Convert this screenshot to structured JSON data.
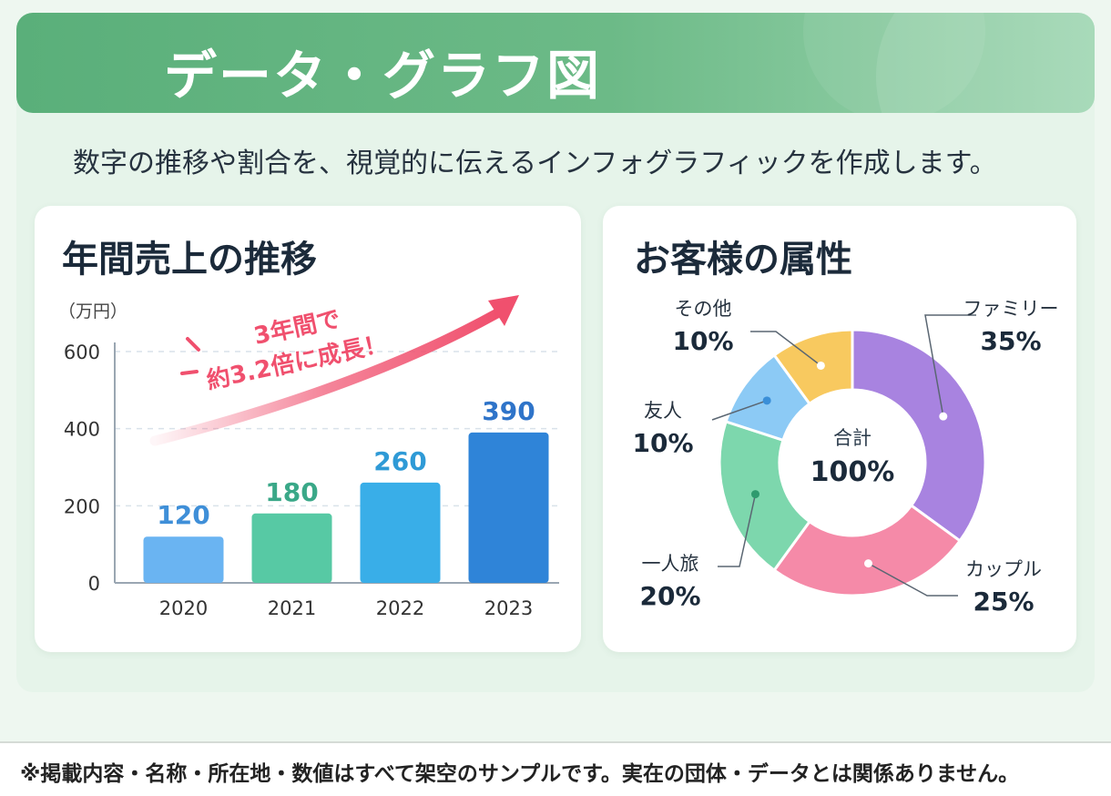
{
  "header": {
    "title": "データ・グラフ図"
  },
  "subtitle": "数字の推移や割合を、視覚的に伝えるインフォグラフィックを作成します。",
  "bar_card": {
    "title": "年間売上の推移",
    "unit": "（万円）",
    "callout_line1": "3年間で",
    "callout_line2": "約3.2倍に成長！",
    "colors": {
      "accent": "#f0506e",
      "bars": [
        "#6ab4f2",
        "#57c9a4",
        "#39aee8",
        "#2f84d8"
      ],
      "labels": [
        "#3f8fd8",
        "#3aa888",
        "#2f9ad6",
        "#2f74c9"
      ]
    }
  },
  "donut_card": {
    "title": "お客様の属性",
    "center_label": "合計",
    "center_value": "100%"
  },
  "chart_data": [
    {
      "type": "bar",
      "title": "年間売上の推移",
      "ylabel": "（万円）",
      "categories": [
        "2020",
        "2021",
        "2022",
        "2023"
      ],
      "values": [
        120,
        180,
        260,
        390
      ],
      "value_labels": [
        "120",
        "180",
        "260",
        "390"
      ],
      "y_ticks": [
        "0",
        "200",
        "400",
        "600"
      ],
      "ylim": [
        0,
        600
      ],
      "grid": true
    },
    {
      "type": "pie",
      "title": "お客様の属性",
      "slices": [
        {
          "label": "ファミリー",
          "value": 35,
          "pct_label": "35%",
          "color": "#a883e0"
        },
        {
          "label": "カップル",
          "value": 25,
          "pct_label": "25%",
          "color": "#f58aa8"
        },
        {
          "label": "一人旅",
          "value": 20,
          "pct_label": "20%",
          "color": "#7dd7ad"
        },
        {
          "label": "友人",
          "value": 10,
          "pct_label": "10%",
          "color": "#8ccaf5"
        },
        {
          "label": "その他",
          "value": 10,
          "pct_label": "10%",
          "color": "#f8c95f"
        }
      ]
    }
  ],
  "footer": {
    "note": "※掲載内容・名称・所在地・数値はすべて架空のサンプルです。実在の団体・データとは関係ありません。"
  }
}
